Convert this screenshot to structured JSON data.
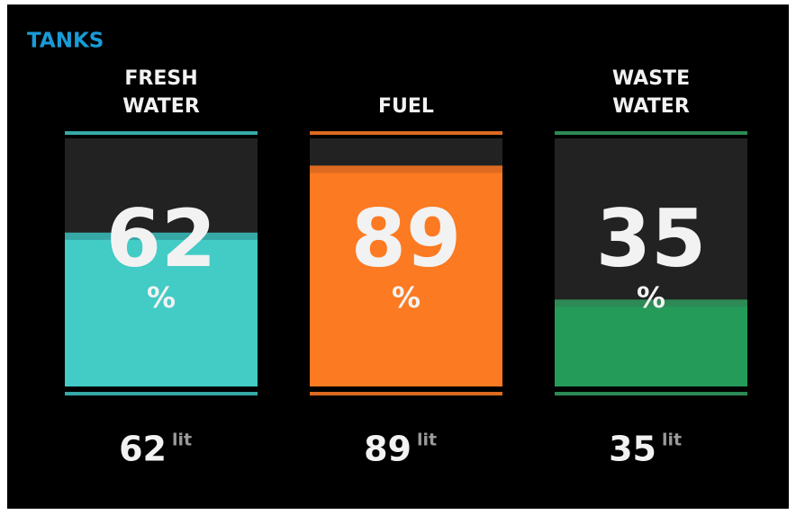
{
  "title": "TANKS",
  "tanks": [
    {
      "name": [
        "FRESH",
        "WATER"
      ],
      "percent": 62,
      "percent_unit": "%",
      "liters": 62,
      "liters_unit": "lit",
      "color": "#43cbc6",
      "accent": "#36a9a7"
    },
    {
      "name": [
        "FUEL"
      ],
      "percent": 89,
      "percent_unit": "%",
      "liters": 89,
      "liters_unit": "lit",
      "color": "#fb7a22",
      "accent": "#dd6a20"
    },
    {
      "name": [
        "WASTE",
        "WATER"
      ],
      "percent": 35,
      "percent_unit": "%",
      "liters": 35,
      "liters_unit": "lit",
      "color": "#249b58",
      "accent": "#2e8a55"
    }
  ]
}
